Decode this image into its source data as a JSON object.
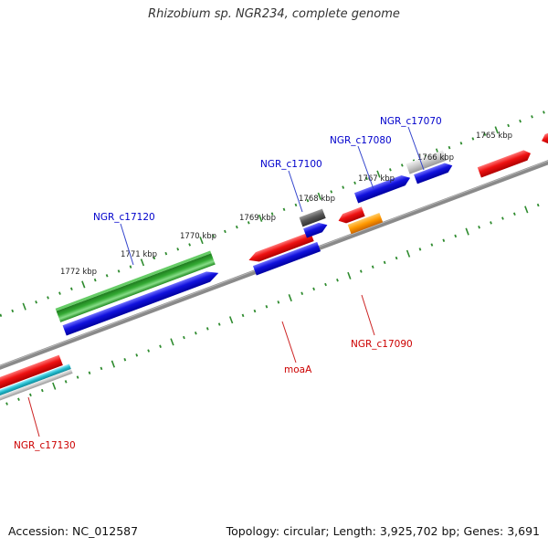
{
  "title": "Rhizobium sp. NGR234, complete genome",
  "footer": {
    "accession": "Accession: NC_012587",
    "summary": "Topology: circular; Length: 3,925,702 bp; Genes: 3,691"
  },
  "ruler_labels": [
    "1772 kbp",
    "1771 kbp",
    "1770 kbp",
    "1769 kbp",
    "1768 kbp",
    "1767 kbp",
    "1766 kbp",
    "1765 kbp"
  ],
  "gene_labels": {
    "top": [
      "NGR_c17120",
      "NGR_c17100",
      "NGR_c17080",
      "NGR_c17070"
    ],
    "bottom": [
      "NGR_c17130",
      "moaA",
      "NGR_c17090"
    ]
  },
  "colors": {
    "backbone": "#888888",
    "tick": "#2e8b2e",
    "top_label": "#0000cc",
    "bottom_label": "#cc0000",
    "blue": "#1111dd",
    "red": "#ee1111",
    "green": "#33aa33",
    "orange": "#ff9900",
    "gray": "#c8c8c8",
    "dark_gray": "#555555",
    "cyan": "#22bbcc"
  }
}
